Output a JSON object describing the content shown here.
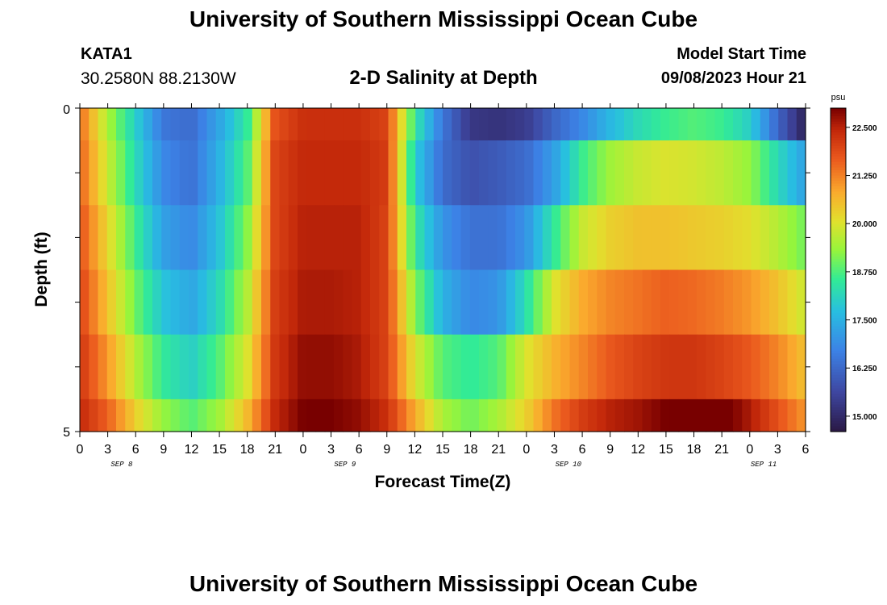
{
  "header": {
    "title": "University of Southern Mississippi Ocean Cube",
    "station": "KATA1",
    "coordinates": "30.2580N  88.2130W",
    "subtitle": "2-D Salinity at Depth",
    "start_label": "Model Start Time",
    "start_value": "09/08/2023 Hour 21"
  },
  "footer": {
    "title": "University of Southern Mississippi Ocean Cube"
  },
  "chart_data": {
    "type": "heatmap",
    "title": "2-D Salinity at Depth",
    "xlabel": "Forecast Time(Z)",
    "ylabel": "Depth (ft)",
    "ylim": [
      0,
      5
    ],
    "y_tick_labels": [
      "0",
      "5"
    ],
    "x_tick_labels": [
      "0",
      "3",
      "6",
      "9",
      "12",
      "15",
      "18",
      "21",
      "0",
      "3",
      "6",
      "9",
      "12",
      "15",
      "18",
      "21",
      "0",
      "3",
      "6",
      "9",
      "12",
      "15",
      "18",
      "21",
      "0",
      "3",
      "6"
    ],
    "date_labels": [
      {
        "label": "SEP 8",
        "hour": 4.5
      },
      {
        "label": "SEP 9",
        "hour": 28.5
      },
      {
        "label": "SEP 10",
        "hour": 52.5
      },
      {
        "label": "SEP 11",
        "hour": 73.5
      }
    ],
    "x_range_hours": [
      0,
      78
    ],
    "colorbar": {
      "unit": "psu",
      "min": 14.6,
      "max": 23.0,
      "ticks": [
        "15.000",
        "16.250",
        "17.500",
        "18.750",
        "20.000",
        "21.250",
        "22.500"
      ],
      "tick_values": [
        15.0,
        16.25,
        17.5,
        18.75,
        20.0,
        21.25,
        22.5
      ]
    },
    "hours": [
      0,
      3,
      6,
      9,
      12,
      15,
      18,
      21,
      24,
      27,
      30,
      33,
      36,
      39,
      42,
      45,
      48,
      51,
      54,
      57,
      60,
      63,
      66,
      69,
      72,
      75,
      78
    ],
    "depth_layers_ft": [
      "0-0.5",
      "0.5-1.5",
      "1.5-2.5",
      "2.5-3.5",
      "3.5-4.5",
      "4.5-5"
    ],
    "salinity": [
      [
        21.5,
        19.5,
        18.0,
        16.5,
        16.3,
        17.3,
        18.5,
        21.8,
        22.3,
        22.3,
        22.3,
        22.0,
        18.5,
        16.5,
        15.3,
        15.2,
        15.4,
        16.2,
        16.8,
        17.6,
        18.2,
        18.6,
        18.8,
        18.6,
        18.0,
        16.2,
        14.8
      ],
      [
        21.6,
        19.8,
        18.2,
        16.8,
        16.4,
        17.5,
        18.8,
        22.0,
        22.4,
        22.4,
        22.4,
        22.1,
        18.0,
        16.3,
        15.8,
        16.0,
        16.3,
        17.2,
        18.6,
        19.4,
        19.8,
        20.0,
        19.9,
        19.7,
        19.3,
        18.2,
        17.2
      ],
      [
        21.8,
        20.2,
        18.6,
        17.2,
        16.8,
        17.8,
        19.2,
        22.0,
        22.5,
        22.5,
        22.5,
        22.0,
        18.5,
        17.0,
        16.4,
        16.4,
        17.0,
        18.5,
        19.8,
        20.3,
        20.5,
        20.5,
        20.4,
        20.3,
        20.1,
        19.6,
        19.0
      ],
      [
        22.0,
        20.5,
        19.0,
        17.8,
        17.3,
        18.2,
        19.6,
        22.1,
        22.6,
        22.6,
        22.5,
        22.0,
        19.2,
        17.5,
        16.8,
        17.0,
        18.3,
        20.0,
        20.8,
        21.2,
        21.4,
        21.6,
        21.5,
        21.3,
        21.0,
        20.5,
        19.8
      ],
      [
        22.2,
        21.0,
        19.6,
        18.5,
        18.0,
        18.8,
        20.0,
        22.2,
        22.8,
        22.8,
        22.6,
        22.0,
        20.0,
        18.8,
        18.5,
        18.8,
        20.0,
        20.7,
        21.2,
        21.7,
        22.0,
        22.2,
        22.2,
        22.0,
        21.7,
        21.2,
        20.5
      ],
      [
        22.4,
        21.6,
        20.3,
        19.3,
        18.8,
        19.4,
        20.6,
        22.4,
        23.0,
        23.0,
        22.8,
        22.3,
        20.8,
        19.5,
        19.0,
        19.5,
        20.3,
        21.4,
        22.1,
        22.5,
        22.7,
        23.0,
        23.3,
        23.2,
        22.6,
        21.8,
        21.0
      ]
    ]
  }
}
